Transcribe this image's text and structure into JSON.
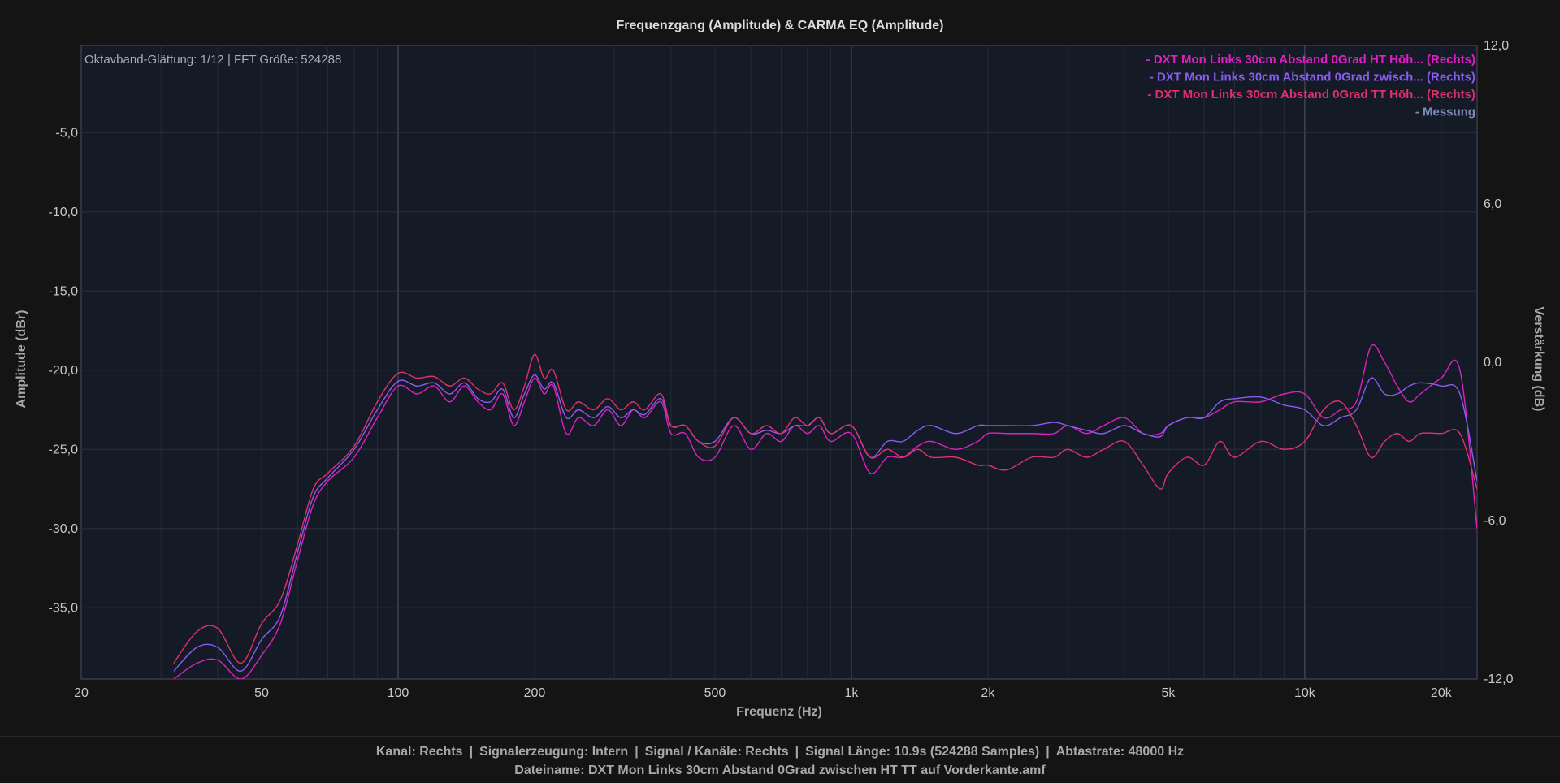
{
  "chart_data": {
    "type": "line",
    "title": "Frequenzgang (Amplitude) & CARMA EQ (Amplitude)",
    "subtitle": "Oktavband-Glättung: 1/12 | FFT Größe: 524288",
    "xlabel": "Frequenz (Hz)",
    "ylabel": "Amplitude (dBr)",
    "y2label": "Verstärkung (dB)",
    "x_scale": "log",
    "xlim": [
      20,
      24000
    ],
    "ylim": [
      -39.5,
      0.5
    ],
    "y2lim": [
      -12,
      12
    ],
    "grid": true,
    "legend_position": "top-right",
    "xticks": [
      {
        "value": 20,
        "label": "20"
      },
      {
        "value": 50,
        "label": "50"
      },
      {
        "value": 100,
        "label": "100"
      },
      {
        "value": 200,
        "label": "200"
      },
      {
        "value": 500,
        "label": "500"
      },
      {
        "value": 1000,
        "label": "1k"
      },
      {
        "value": 2000,
        "label": "2k"
      },
      {
        "value": 5000,
        "label": "5k"
      },
      {
        "value": 10000,
        "label": "10k"
      },
      {
        "value": 20000,
        "label": "20k"
      }
    ],
    "yticks": [
      {
        "value": -5,
        "label": "-5,0"
      },
      {
        "value": -10,
        "label": "-10,0"
      },
      {
        "value": -15,
        "label": "-15,0"
      },
      {
        "value": -20,
        "label": "-20,0"
      },
      {
        "value": -25,
        "label": "-25,0"
      },
      {
        "value": -30,
        "label": "-30,0"
      },
      {
        "value": -35,
        "label": "-35,0"
      }
    ],
    "y2ticks": [
      {
        "value": 12,
        "label": "12,0"
      },
      {
        "value": 6,
        "label": "6,0"
      },
      {
        "value": 0,
        "label": "0,0"
      },
      {
        "value": -6,
        "label": "-6,0"
      },
      {
        "value": -12,
        "label": "-12,0"
      }
    ],
    "series": [
      {
        "name": "- DXT Mon Links 30cm Abstand 0Grad HT Höh... (Rechts)",
        "color": "#e020c0",
        "x": [
          32,
          36,
          40,
          45,
          50,
          55,
          60,
          65,
          70,
          80,
          90,
          100,
          110,
          120,
          130,
          140,
          150,
          160,
          170,
          180,
          190,
          200,
          210,
          220,
          235,
          250,
          270,
          290,
          310,
          330,
          350,
          380,
          400,
          430,
          460,
          500,
          550,
          600,
          650,
          700,
          750,
          800,
          850,
          900,
          1000,
          1100,
          1200,
          1300,
          1400,
          1500,
          1700,
          1900,
          2000,
          2200,
          2500,
          2800,
          3000,
          3300,
          3600,
          4000,
          4400,
          4800,
          5000,
          5500,
          6000,
          6500,
          7000,
          8000,
          9000,
          10000,
          11000,
          12000,
          13000,
          14000,
          15000,
          16000,
          17000,
          18000,
          20000,
          22000,
          24000
        ],
        "values": [
          -39.5,
          -38.5,
          -38.3,
          -39.5,
          -38.0,
          -36.0,
          -32.0,
          -28.5,
          -27.0,
          -25.5,
          -23.0,
          -21.0,
          -21.5,
          -21.0,
          -22.0,
          -21.0,
          -22.0,
          -22.5,
          -21.5,
          -23.5,
          -22.0,
          -20.5,
          -21.5,
          -21.0,
          -24.0,
          -23.0,
          -23.5,
          -22.5,
          -23.5,
          -22.5,
          -23.0,
          -22.0,
          -24.0,
          -24.0,
          -25.5,
          -25.5,
          -23.5,
          -25.0,
          -24.0,
          -24.5,
          -23.5,
          -24.0,
          -23.5,
          -24.5,
          -24.0,
          -26.5,
          -25.5,
          -25.5,
          -24.8,
          -24.5,
          -25.0,
          -24.5,
          -24.0,
          -24.0,
          -24.0,
          -24.0,
          -23.5,
          -24.0,
          -23.5,
          -23.0,
          -24.0,
          -24.0,
          -23.5,
          -23.0,
          -23.0,
          -22.5,
          -22.0,
          -22.0,
          -21.5,
          -21.5,
          -23.0,
          -22.5,
          -22.0,
          -18.5,
          -19.5,
          -21.0,
          -22.0,
          -21.5,
          -20.5,
          -20.0,
          -30.0
        ]
      },
      {
        "name": "- DXT Mon Links 30cm Abstand 0Grad zwisch... (Rechts)",
        "color": "#8a5cf0",
        "x": [
          32,
          36,
          40,
          45,
          50,
          55,
          60,
          65,
          70,
          80,
          90,
          100,
          110,
          120,
          130,
          140,
          150,
          160,
          170,
          180,
          190,
          200,
          210,
          220,
          235,
          250,
          270,
          290,
          310,
          330,
          350,
          380,
          400,
          430,
          460,
          500,
          550,
          600,
          650,
          700,
          750,
          800,
          850,
          900,
          1000,
          1100,
          1200,
          1300,
          1400,
          1500,
          1700,
          1900,
          2000,
          2200,
          2500,
          2800,
          3000,
          3300,
          3600,
          4000,
          4400,
          4800,
          5000,
          5500,
          6000,
          6500,
          7000,
          8000,
          9000,
          10000,
          11000,
          12000,
          13000,
          14000,
          15000,
          16000,
          17000,
          18000,
          20000,
          22000,
          24000
        ],
        "values": [
          -39.0,
          -37.5,
          -37.5,
          -39.0,
          -37.0,
          -35.5,
          -31.5,
          -28.0,
          -26.8,
          -25.0,
          -22.5,
          -20.7,
          -21.0,
          -20.8,
          -21.5,
          -20.8,
          -21.8,
          -22.0,
          -21.2,
          -23.0,
          -21.5,
          -20.3,
          -21.2,
          -20.8,
          -23.0,
          -22.5,
          -23.0,
          -22.3,
          -23.0,
          -22.5,
          -22.8,
          -21.8,
          -23.5,
          -23.5,
          -24.5,
          -24.5,
          -23.0,
          -24.0,
          -23.8,
          -24.0,
          -23.5,
          -23.5,
          -23.0,
          -24.0,
          -23.5,
          -25.5,
          -24.5,
          -24.5,
          -23.8,
          -23.5,
          -24.0,
          -23.5,
          -23.5,
          -23.5,
          -23.5,
          -23.3,
          -23.5,
          -23.8,
          -24.0,
          -23.5,
          -24.0,
          -24.2,
          -23.5,
          -23.0,
          -23.0,
          -22.0,
          -21.8,
          -21.7,
          -22.2,
          -22.5,
          -23.5,
          -23.0,
          -22.5,
          -20.5,
          -21.5,
          -21.5,
          -21.0,
          -20.8,
          -21.0,
          -21.5,
          -27.0
        ]
      },
      {
        "name": "- DXT Mon Links 30cm Abstand 0Grad TT Höh... (Rechts)",
        "color": "#e03070",
        "x": [
          32,
          36,
          40,
          45,
          50,
          55,
          60,
          65,
          70,
          80,
          90,
          100,
          110,
          120,
          130,
          140,
          150,
          160,
          170,
          180,
          190,
          200,
          210,
          220,
          235,
          250,
          270,
          290,
          310,
          330,
          350,
          380,
          400,
          430,
          460,
          500,
          550,
          600,
          650,
          700,
          750,
          800,
          850,
          900,
          1000,
          1100,
          1200,
          1300,
          1400,
          1500,
          1700,
          1900,
          2000,
          2200,
          2500,
          2800,
          3000,
          3300,
          3600,
          4000,
          4400,
          4800,
          5000,
          5500,
          6000,
          6500,
          7000,
          8000,
          9000,
          10000,
          11000,
          12000,
          13000,
          14000,
          15000,
          16000,
          17000,
          18000,
          20000,
          22000,
          24000
        ],
        "values": [
          -38.5,
          -36.5,
          -36.3,
          -38.5,
          -36.0,
          -34.5,
          -31.0,
          -27.5,
          -26.5,
          -24.8,
          -22.0,
          -20.2,
          -20.5,
          -20.4,
          -21.0,
          -20.5,
          -21.2,
          -21.5,
          -20.8,
          -22.5,
          -21.0,
          -19.0,
          -20.5,
          -20.0,
          -22.5,
          -22.0,
          -22.5,
          -21.8,
          -22.5,
          -22.0,
          -22.5,
          -21.5,
          -23.5,
          -23.5,
          -24.5,
          -24.8,
          -23.0,
          -24.0,
          -23.5,
          -24.0,
          -23.0,
          -23.5,
          -23.0,
          -24.0,
          -23.5,
          -25.5,
          -25.0,
          -25.5,
          -25.0,
          -25.5,
          -25.5,
          -26.0,
          -26.0,
          -26.3,
          -25.5,
          -25.5,
          -25.0,
          -25.5,
          -25.0,
          -24.5,
          -26.0,
          -27.5,
          -26.5,
          -25.5,
          -26.0,
          -24.5,
          -25.5,
          -24.5,
          -25.0,
          -24.5,
          -22.5,
          -22.0,
          -23.5,
          -25.5,
          -24.5,
          -24.0,
          -24.5,
          -24.0,
          -24.0,
          -24.0,
          -27.5
        ]
      }
    ],
    "legend": [
      {
        "label": "- DXT Mon Links 30cm Abstand 0Grad HT Höh... (Rechts)",
        "color": "#e020c0"
      },
      {
        "label": "- DXT Mon Links 30cm Abstand 0Grad zwisch... (Rechts)",
        "color": "#8a5cf0"
      },
      {
        "label": "- DXT Mon Links 30cm Abstand 0Grad TT Höh... (Rechts)",
        "color": "#e03070"
      },
      {
        "label": "- Messung",
        "color": "#7f8ab8"
      }
    ]
  },
  "status": {
    "channel": "Kanal: Rechts",
    "signal_generation": "Signalerzeugung: Intern",
    "signal_channels": "Signal / Kanäle: Rechts",
    "signal_length": "Signal Länge: 10.9s (524288 Samples)",
    "sample_rate": "Abtastrate: 48000 Hz",
    "filename": "Dateiname: DXT Mon Links 30cm Abstand 0Grad zwischen HT TT auf Vorderkante.amf"
  }
}
